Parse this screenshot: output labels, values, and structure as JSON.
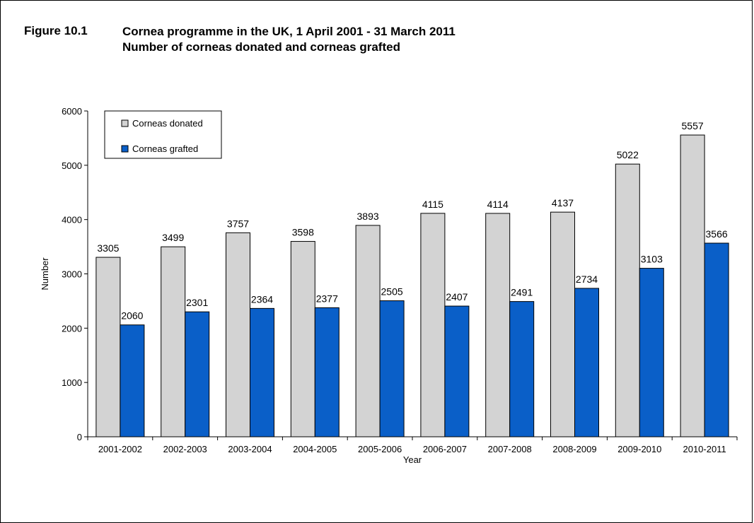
{
  "figure": {
    "label": "Figure 10.1",
    "title_line1": "Cornea programme in the UK, 1 April 2001 - 31 March 2011",
    "title_line2": "Number of corneas donated and corneas grafted"
  },
  "chart_data": {
    "type": "bar",
    "xlabel": "Year",
    "ylabel": "Number",
    "ylim": [
      0,
      6000
    ],
    "yticks": [
      0,
      1000,
      2000,
      3000,
      4000,
      5000,
      6000
    ],
    "categories": [
      "2001-2002",
      "2002-2003",
      "2003-2004",
      "2004-2005",
      "2005-2006",
      "2006-2007",
      "2007-2008",
      "2008-2009",
      "2009-2010",
      "2010-2011"
    ],
    "series": [
      {
        "name": "Corneas donated",
        "color": "#d3d3d3",
        "values": [
          3305,
          3499,
          3757,
          3598,
          3893,
          4115,
          4114,
          4137,
          5022,
          5557
        ]
      },
      {
        "name": "Corneas grafted",
        "color": "#0a5fc8",
        "values": [
          2060,
          2301,
          2364,
          2377,
          2505,
          2407,
          2491,
          2734,
          3103,
          3566
        ]
      }
    ],
    "legend_position": "top-left",
    "grid": false
  }
}
